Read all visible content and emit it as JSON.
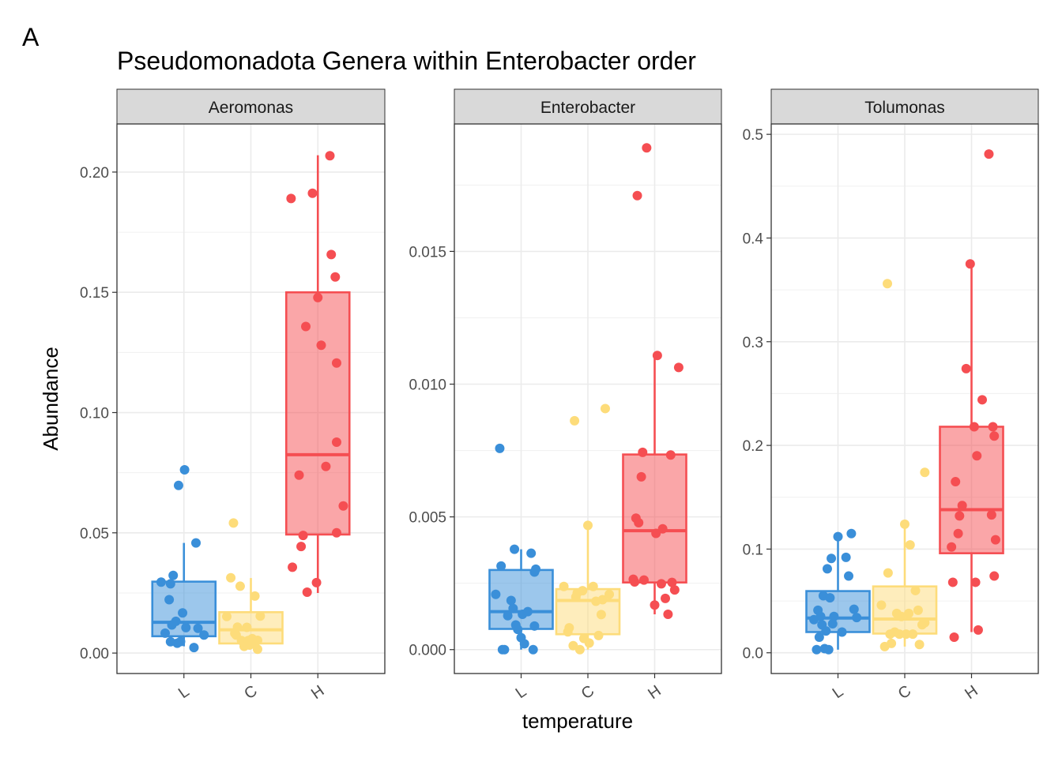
{
  "panel_tag": "A",
  "chart_data": {
    "type": "box-jitter",
    "title": "Pseudomonadota Genera within Enterobacter order",
    "xlabel": "temperature",
    "ylabel": "Abundance",
    "categories": [
      "L",
      "C",
      "H"
    ],
    "colors": {
      "L": "#3A8FD9",
      "C": "#FDDC7A",
      "H": "#F54E52"
    },
    "grid": true,
    "legend": "none",
    "facets": [
      {
        "name": "Aeromonas",
        "ylim": [
          -0.0085,
          0.22
        ],
        "yticks": [
          0.0,
          0.05,
          0.1,
          0.15,
          0.2
        ],
        "ytick_labels": [
          "0.00",
          "0.05",
          "0.10",
          "0.15",
          "0.20"
        ],
        "boxes": {
          "L": {
            "q1": 0.007,
            "median": 0.0128,
            "q3": 0.0297,
            "whisker_low": 0.0028,
            "whisker_high": 0.0458
          },
          "C": {
            "q1": 0.004,
            "median": 0.0097,
            "q3": 0.017,
            "whisker_low": 0.002,
            "whisker_high": 0.0312
          },
          "H": {
            "q1": 0.0493,
            "median": 0.0825,
            "q3": 0.15,
            "whisker_low": 0.025,
            "whisker_high": 0.207
          }
        },
        "points": {
          "L": [
            [
              -0.34,
              0.0295
            ],
            [
              -0.28,
              0.0083
            ],
            [
              -0.22,
              0.0222
            ],
            [
              -0.2,
              0.0288
            ],
            [
              -0.18,
              0.0117
            ],
            [
              -0.16,
              0.0323
            ],
            [
              -0.12,
              0.0132
            ],
            [
              -0.1,
              0.0041
            ],
            [
              -0.08,
              0.0697
            ],
            [
              -0.05,
              0.0048
            ],
            [
              -0.02,
              0.0167
            ],
            [
              0.01,
              0.0762
            ],
            [
              0.03,
              0.0106
            ],
            [
              0.15,
              0.0023
            ],
            [
              0.18,
              0.0458
            ],
            [
              0.21,
              0.0103
            ],
            [
              0.3,
              0.0075
            ],
            [
              -0.2,
              0.0047
            ]
          ],
          "C": [
            [
              -0.36,
              0.0152
            ],
            [
              -0.3,
              0.0313
            ],
            [
              -0.24,
              0.0082
            ],
            [
              -0.22,
              0.0075
            ],
            [
              -0.2,
              0.0108
            ],
            [
              -0.16,
              0.0278
            ],
            [
              -0.14,
              0.0052
            ],
            [
              -0.1,
              0.0028
            ],
            [
              -0.06,
              0.0107
            ],
            [
              -0.04,
              0.0052
            ],
            [
              0.02,
              0.006
            ],
            [
              0.04,
              0.004
            ],
            [
              0.06,
              0.0237
            ],
            [
              0.1,
              0.0053
            ],
            [
              0.14,
              0.0154
            ],
            [
              -0.26,
              0.0541
            ],
            [
              -0.02,
              0.0033
            ],
            [
              0.1,
              0.0016
            ]
          ],
          "H": [
            [
              -0.4,
              0.189
            ],
            [
              -0.38,
              0.0357
            ],
            [
              -0.28,
              0.074
            ],
            [
              -0.25,
              0.0443
            ],
            [
              -0.22,
              0.0489
            ],
            [
              -0.18,
              0.1358
            ],
            [
              -0.16,
              0.0253
            ],
            [
              -0.08,
              0.1912
            ],
            [
              -0.02,
              0.0293
            ],
            [
              0.0,
              0.1478
            ],
            [
              0.05,
              0.128
            ],
            [
              0.12,
              0.0776
            ],
            [
              0.18,
              0.2068
            ],
            [
              0.2,
              0.1657
            ],
            [
              0.26,
              0.1564
            ],
            [
              0.28,
              0.0877
            ],
            [
              0.28,
              0.1206
            ],
            [
              0.28,
              0.05
            ],
            [
              0.38,
              0.0612
            ]
          ]
        }
      },
      {
        "name": "Enterobacter",
        "ylim": [
          -0.0009,
          0.0198
        ],
        "yticks": [
          0.0,
          0.005,
          0.01,
          0.015
        ],
        "ytick_labels": [
          "0.000",
          "0.005",
          "0.010",
          "0.015"
        ],
        "boxes": {
          "L": {
            "q1": 0.00078,
            "median": 0.00143,
            "q3": 0.003,
            "whisker_low": 0.0,
            "whisker_high": 0.00378
          },
          "C": {
            "q1": 0.00058,
            "median": 0.00185,
            "q3": 0.00228,
            "whisker_low": 0.0,
            "whisker_high": 0.00468
          },
          "H": {
            "q1": 0.00253,
            "median": 0.00448,
            "q3": 0.00735,
            "whisker_low": 0.00133,
            "whisker_high": 0.01108
          }
        },
        "points": {
          "L": [
            [
              -0.38,
              0.00208
            ],
            [
              -0.32,
              0.00758
            ],
            [
              -0.3,
              0.00315
            ],
            [
              -0.28,
              0.0
            ],
            [
              -0.25,
              0.0
            ],
            [
              -0.2,
              0.00128
            ],
            [
              -0.15,
              0.00185
            ],
            [
              -0.12,
              0.00155
            ],
            [
              -0.1,
              0.00378
            ],
            [
              -0.08,
              0.00093
            ],
            [
              -0.05,
              0.00076
            ],
            [
              0.0,
              0.00045
            ],
            [
              0.02,
              0.00133
            ],
            [
              0.05,
              0.00022
            ],
            [
              0.1,
              0.00143
            ],
            [
              0.15,
              0.00363
            ],
            [
              0.18,
              0.0
            ],
            [
              0.2,
              0.00292
            ],
            [
              0.2,
              0.00089
            ],
            [
              0.22,
              0.00303
            ]
          ],
          "C": [
            [
              -0.36,
              0.00238
            ],
            [
              -0.3,
              0.00067
            ],
            [
              -0.28,
              0.00082
            ],
            [
              -0.22,
              0.00015
            ],
            [
              -0.2,
              0.00862
            ],
            [
              -0.18,
              0.00198
            ],
            [
              -0.16,
              0.00213
            ],
            [
              -0.12,
              0.0
            ],
            [
              -0.08,
              0.00222
            ],
            [
              -0.06,
              0.00042
            ],
            [
              0.0,
              0.00468
            ],
            [
              0.02,
              0.00025
            ],
            [
              0.08,
              0.00238
            ],
            [
              0.12,
              0.00182
            ],
            [
              0.16,
              0.00053
            ],
            [
              0.2,
              0.00132
            ],
            [
              0.22,
              0.00188
            ],
            [
              0.26,
              0.00908
            ],
            [
              0.32,
              0.00208
            ]
          ],
          "H": [
            [
              -0.32,
              0.00265
            ],
            [
              -0.3,
              0.00255
            ],
            [
              -0.28,
              0.00495
            ],
            [
              -0.26,
              0.0171
            ],
            [
              -0.24,
              0.00478
            ],
            [
              -0.2,
              0.00651
            ],
            [
              -0.18,
              0.00743
            ],
            [
              -0.16,
              0.00262
            ],
            [
              -0.12,
              0.0189
            ],
            [
              0.0,
              0.00168
            ],
            [
              0.02,
              0.00438
            ],
            [
              0.04,
              0.01108
            ],
            [
              0.1,
              0.00248
            ],
            [
              0.12,
              0.00455
            ],
            [
              0.16,
              0.00193
            ],
            [
              0.2,
              0.00133
            ],
            [
              0.24,
              0.00733
            ],
            [
              0.26,
              0.00253
            ],
            [
              0.3,
              0.00225
            ],
            [
              0.36,
              0.01063
            ]
          ]
        }
      },
      {
        "name": "Tolumonas",
        "ylim": [
          -0.02,
          0.51
        ],
        "yticks": [
          0.0,
          0.1,
          0.2,
          0.3,
          0.4,
          0.5
        ],
        "ytick_labels": [
          "0.0",
          "0.1",
          "0.2",
          "0.3",
          "0.4",
          "0.5"
        ],
        "boxes": {
          "L": {
            "q1": 0.02,
            "median": 0.0335,
            "q3": 0.0595,
            "whisker_low": 0.003,
            "whisker_high": 0.115
          },
          "C": {
            "q1": 0.0185,
            "median": 0.0325,
            "q3": 0.064,
            "whisker_low": 0.006,
            "whisker_high": 0.125
          },
          "H": {
            "q1": 0.096,
            "median": 0.138,
            "q3": 0.218,
            "whisker_low": 0.02,
            "whisker_high": 0.374
          }
        },
        "points": {
          "L": [
            [
              -0.36,
              0.032
            ],
            [
              -0.32,
              0.003
            ],
            [
              -0.3,
              0.041
            ],
            [
              -0.28,
              0.015
            ],
            [
              -0.26,
              0.035
            ],
            [
              -0.24,
              0.027
            ],
            [
              -0.22,
              0.055
            ],
            [
              -0.2,
              0.004
            ],
            [
              -0.18,
              0.021
            ],
            [
              -0.16,
              0.081
            ],
            [
              -0.14,
              0.003
            ],
            [
              -0.12,
              0.053
            ],
            [
              -0.1,
              0.091
            ],
            [
              -0.06,
              0.035
            ],
            [
              0.0,
              0.112
            ],
            [
              0.06,
              0.02
            ],
            [
              0.12,
              0.092
            ],
            [
              0.16,
              0.074
            ],
            [
              0.2,
              0.115
            ],
            [
              0.24,
              0.042
            ],
            [
              0.28,
              0.034
            ],
            [
              -0.08,
              0.028
            ]
          ],
          "C": [
            [
              -0.35,
              0.046
            ],
            [
              -0.3,
              0.006
            ],
            [
              -0.26,
              0.356
            ],
            [
              -0.25,
              0.077
            ],
            [
              -0.22,
              0.018
            ],
            [
              -0.2,
              0.009
            ],
            [
              -0.15,
              0.02
            ],
            [
              -0.12,
              0.038
            ],
            [
              -0.08,
              0.018
            ],
            [
              -0.05,
              0.035
            ],
            [
              0.0,
              0.124
            ],
            [
              0.02,
              0.018
            ],
            [
              0.06,
              0.038
            ],
            [
              0.08,
              0.104
            ],
            [
              0.12,
              0.018
            ],
            [
              0.16,
              0.06
            ],
            [
              0.2,
              0.041
            ],
            [
              0.22,
              0.008
            ],
            [
              0.26,
              0.027
            ],
            [
              0.3,
              0.174
            ],
            [
              0.3,
              0.029
            ]
          ],
          "H": [
            [
              -0.3,
              0.102
            ],
            [
              -0.28,
              0.068
            ],
            [
              -0.26,
              0.015
            ],
            [
              -0.24,
              0.165
            ],
            [
              -0.2,
              0.115
            ],
            [
              -0.18,
              0.132
            ],
            [
              -0.14,
              0.142
            ],
            [
              -0.08,
              0.274
            ],
            [
              -0.02,
              0.375
            ],
            [
              0.04,
              0.218
            ],
            [
              0.06,
              0.068
            ],
            [
              0.08,
              0.19
            ],
            [
              0.1,
              0.022
            ],
            [
              0.16,
              0.244
            ],
            [
              0.26,
              0.481
            ],
            [
              0.3,
              0.133
            ],
            [
              0.32,
              0.218
            ],
            [
              0.34,
              0.209
            ],
            [
              0.34,
              0.074
            ],
            [
              0.36,
              0.109
            ]
          ]
        }
      }
    ]
  }
}
